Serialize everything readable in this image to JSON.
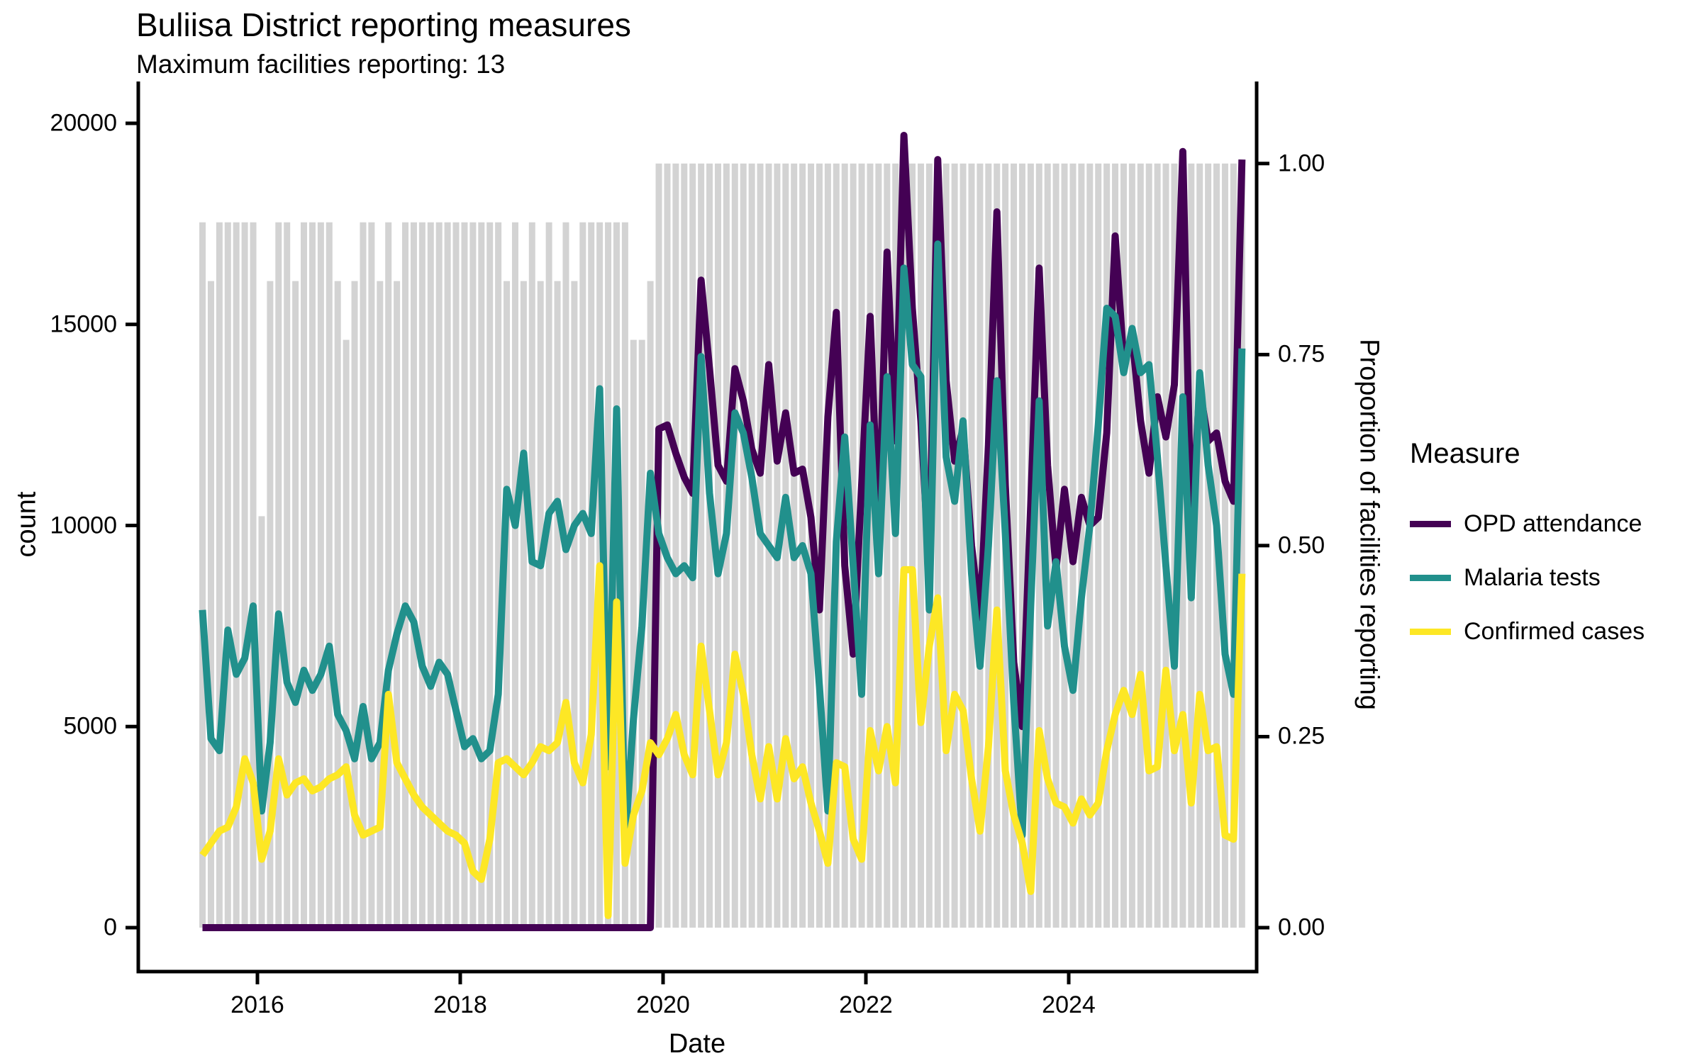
{
  "header": {
    "title": "Buliisa District reporting measures",
    "subtitle": "Maximum facilities reporting: 13"
  },
  "chart_data": {
    "type": "line",
    "subtype": "monthly time series lines with background column series on secondary axis",
    "title": "Buliisa District reporting measures",
    "subtitle": "Maximum facilities reporting: 13",
    "xlabel": "Date",
    "ylabel": "count",
    "y2label": "Proportion of facilities reporting",
    "x_start_month": "2015-06",
    "n_months": 124,
    "x_axis_ticks": [
      {
        "label": "2016",
        "year": 2016
      },
      {
        "label": "2018",
        "year": 2018
      },
      {
        "label": "2020",
        "year": 2020
      },
      {
        "label": "2022",
        "year": 2022
      },
      {
        "label": "2024",
        "year": 2024
      }
    ],
    "left_axis": {
      "label": "count",
      "range": [
        0,
        20000
      ],
      "ticks": [
        {
          "label": "0",
          "value": 0
        },
        {
          "label": "5000",
          "value": 5000
        },
        {
          "label": "10000",
          "value": 10000
        },
        {
          "label": "15000",
          "value": 15000
        },
        {
          "label": "20000",
          "value": 20000
        }
      ]
    },
    "right_axis": {
      "label": "Proportion of facilities reporting",
      "range": [
        0,
        1
      ],
      "count_equivalent_of_1": 19000,
      "ticks": [
        {
          "label": "0.00",
          "value": 0
        },
        {
          "label": "0.25",
          "value": 0.25
        },
        {
          "label": "0.50",
          "value": 0.5
        },
        {
          "label": "0.75",
          "value": 0.75
        },
        {
          "label": "1.00",
          "value": 1
        }
      ]
    },
    "legend": {
      "title": "Measure",
      "position": "right",
      "entries": [
        {
          "label": "OPD attendance",
          "color": "#440154"
        },
        {
          "label": "Malaria tests",
          "color": "#21908C"
        },
        {
          "label": "Confirmed cases",
          "color": "#FDE725"
        }
      ]
    },
    "bars": {
      "name": "proportion-of-facilities-reporting",
      "color": "#D3D3D3",
      "max_facilities": 13,
      "facilities_reporting": [
        12,
        11,
        12,
        12,
        12,
        12,
        12,
        7,
        11,
        12,
        12,
        11,
        12,
        12,
        12,
        12,
        11,
        10,
        11,
        12,
        12,
        11,
        12,
        11,
        12,
        12,
        12,
        12,
        12,
        12,
        12,
        12,
        12,
        12,
        12,
        12,
        11,
        12,
        11,
        12,
        11,
        12,
        11,
        12,
        11,
        12,
        12,
        12,
        12,
        12,
        12,
        10,
        10,
        11,
        13,
        13,
        13,
        13,
        13,
        13,
        13,
        13,
        13,
        13,
        13,
        13,
        13,
        13,
        13,
        13,
        13,
        13,
        13,
        13,
        13,
        13,
        13,
        13,
        13,
        13,
        13,
        13,
        13,
        13,
        13,
        13,
        13,
        13,
        13,
        13,
        13,
        13,
        13,
        13,
        13,
        13,
        13,
        13,
        13,
        13,
        13,
        13,
        13,
        13,
        13,
        13,
        13,
        13,
        13,
        13,
        13,
        13,
        13,
        13,
        13,
        13,
        13,
        13,
        13,
        13,
        13,
        13,
        13,
        13
      ]
    },
    "series": [
      {
        "name": "OPD attendance",
        "color": "#440154",
        "values": [
          0,
          0,
          0,
          0,
          0,
          0,
          0,
          0,
          0,
          0,
          0,
          0,
          0,
          0,
          0,
          0,
          0,
          0,
          0,
          0,
          0,
          0,
          0,
          0,
          0,
          0,
          0,
          0,
          0,
          0,
          0,
          0,
          0,
          0,
          0,
          0,
          0,
          0,
          0,
          0,
          0,
          0,
          0,
          0,
          0,
          0,
          0,
          0,
          0,
          0,
          0,
          0,
          0,
          0,
          12400,
          12500,
          11800,
          11200,
          10800,
          16100,
          13900,
          11500,
          11100,
          13900,
          13100,
          11900,
          11300,
          14000,
          11600,
          12800,
          11300,
          11400,
          10200,
          7900,
          12700,
          15300,
          9000,
          6800,
          11000,
          15200,
          9800,
          16800,
          12100,
          19700,
          15400,
          12600,
          8900,
          19100,
          13600,
          11600,
          12400,
          9500,
          7700,
          12000,
          17800,
          11000,
          6600,
          5000,
          10500,
          16400,
          11500,
          8900,
          10900,
          9100,
          10700,
          10000,
          10200,
          12300,
          17200,
          14100,
          14700,
          12600,
          11300,
          13200,
          12200,
          13500,
          19300,
          9800,
          13400,
          12100,
          12300,
          11100,
          10600,
          19100
        ]
      },
      {
        "name": "Malaria tests",
        "color": "#21908C",
        "values": [
          7900,
          4700,
          4400,
          7400,
          6300,
          6700,
          8000,
          2900,
          4600,
          7800,
          6100,
          5600,
          6400,
          5900,
          6300,
          7000,
          5300,
          4900,
          4200,
          5500,
          4200,
          4600,
          6400,
          7300,
          8000,
          7600,
          6500,
          6000,
          6600,
          6300,
          5400,
          4500,
          4700,
          4200,
          4400,
          5800,
          10900,
          10000,
          11800,
          9100,
          9000,
          10300,
          10600,
          9400,
          10000,
          10300,
          9800,
          13400,
          4000,
          12900,
          2100,
          5200,
          7500,
          11300,
          9800,
          9200,
          8800,
          9000,
          8700,
          14200,
          10800,
          8800,
          9800,
          12800,
          12300,
          11200,
          9800,
          9500,
          9200,
          10700,
          9200,
          9500,
          8800,
          6000,
          2900,
          9600,
          12200,
          9000,
          5800,
          12500,
          8800,
          13700,
          9800,
          16400,
          14000,
          13700,
          7900,
          17000,
          11700,
          10600,
          12600,
          8800,
          6500,
          9500,
          13600,
          9800,
          5600,
          2300,
          8000,
          13100,
          7500,
          9100,
          7000,
          5900,
          8200,
          10000,
          12500,
          15400,
          15200,
          13800,
          14900,
          13800,
          14000,
          11700,
          9000,
          6500,
          13200,
          8200,
          13800,
          11500,
          10000,
          6800,
          5800,
          14400
        ]
      },
      {
        "name": "Confirmed cases",
        "color": "#FDE725",
        "values": [
          1800,
          2100,
          2400,
          2500,
          3000,
          4200,
          3600,
          1700,
          2400,
          4200,
          3300,
          3600,
          3700,
          3400,
          3500,
          3700,
          3800,
          4000,
          2800,
          2300,
          2400,
          2500,
          5800,
          4100,
          3700,
          3300,
          3000,
          2800,
          2600,
          2400,
          2300,
          2100,
          1400,
          1200,
          2200,
          4100,
          4200,
          4000,
          3800,
          4100,
          4500,
          4400,
          4600,
          5600,
          4100,
          3600,
          4800,
          9000,
          300,
          8100,
          1600,
          2800,
          3400,
          4600,
          4300,
          4700,
          5300,
          4300,
          3800,
          7000,
          5400,
          3800,
          4600,
          6800,
          5800,
          4300,
          3200,
          4500,
          3200,
          4700,
          3700,
          4000,
          3100,
          2400,
          1600,
          4100,
          4000,
          2200,
          1700,
          4900,
          3900,
          5000,
          3600,
          8900,
          8900,
          5100,
          7000,
          8200,
          4400,
          5800,
          5400,
          3700,
          2400,
          4500,
          7900,
          3900,
          2800,
          2100,
          900,
          4900,
          3700,
          3100,
          3000,
          2600,
          3200,
          2800,
          3100,
          4400,
          5300,
          5900,
          5300,
          6300,
          3900,
          4000,
          6400,
          4400,
          5300,
          3100,
          5800,
          4400,
          4500,
          2300,
          2200,
          8800
        ]
      }
    ],
    "layout_hints": {
      "grid": "off",
      "panel_background": "#ffffff",
      "axis_color": "#000000"
    }
  }
}
